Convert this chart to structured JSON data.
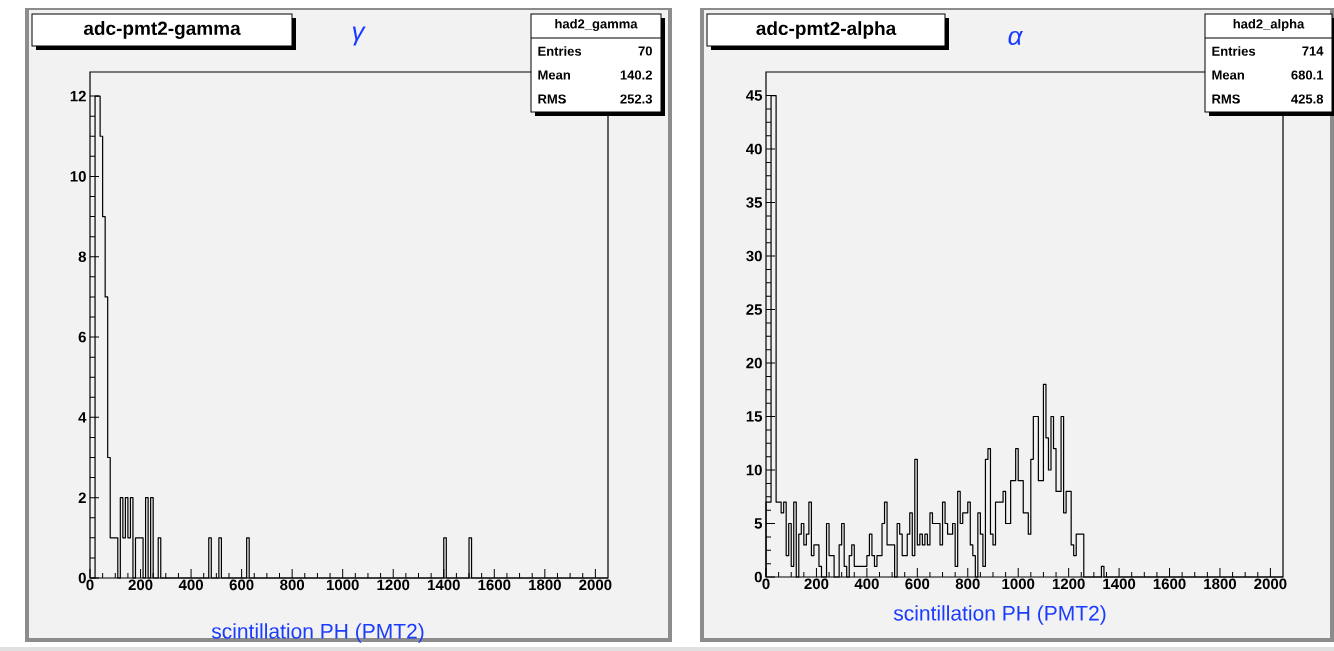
{
  "chart_data": [
    {
      "type": "histogram",
      "title": "adc-pmt2-gamma",
      "xlabel": "scintillation PH (PMT2)",
      "color": "#000000",
      "bins": [
        0,
        20,
        30,
        40,
        50,
        60,
        70,
        80,
        90,
        100,
        110,
        120,
        130,
        140,
        150,
        160,
        170,
        180,
        190,
        200,
        210,
        220,
        230,
        240,
        250,
        270,
        280,
        470,
        480,
        510,
        520,
        620,
        630,
        1400,
        1410,
        1500,
        1510,
        2050
      ],
      "values": [
        0,
        12,
        12,
        11,
        9,
        7,
        3,
        1,
        1,
        1,
        0,
        2,
        1,
        2,
        1,
        2,
        0,
        1,
        1,
        1,
        0,
        2,
        0,
        2,
        0,
        1,
        0,
        1,
        0,
        1,
        0,
        1,
        0,
        1,
        0,
        1,
        0
      ],
      "xlim": [
        0,
        2050
      ],
      "ylim": [
        0,
        12.6
      ],
      "xticks": [
        0,
        200,
        400,
        600,
        800,
        1000,
        1200,
        1400,
        1600,
        1800,
        2000
      ],
      "yticks": [
        0,
        2,
        4,
        6,
        8,
        10,
        12
      ],
      "annotations": [
        "γ",
        "had2_gamma",
        "Entries",
        "70",
        "Mean",
        "140.2",
        "RMS",
        "252.3"
      ]
    },
    {
      "type": "histogram",
      "title": "adc-pmt2-alpha",
      "xlabel": "scintillation PH (PMT2)",
      "color": "#000000",
      "bins": [
        0,
        10,
        20,
        30,
        40,
        50,
        60,
        70,
        80,
        90,
        100,
        110,
        120,
        130,
        140,
        150,
        160,
        170,
        180,
        190,
        200,
        210,
        220,
        230,
        240,
        250,
        260,
        270,
        280,
        290,
        300,
        310,
        320,
        330,
        340,
        350,
        360,
        370,
        380,
        390,
        400,
        410,
        420,
        430,
        440,
        450,
        460,
        470,
        480,
        490,
        500,
        510,
        520,
        530,
        540,
        550,
        560,
        570,
        580,
        590,
        600,
        610,
        620,
        630,
        640,
        650,
        660,
        670,
        680,
        690,
        700,
        710,
        720,
        730,
        740,
        750,
        760,
        770,
        780,
        790,
        800,
        810,
        820,
        830,
        840,
        850,
        860,
        870,
        880,
        890,
        900,
        910,
        920,
        930,
        940,
        950,
        960,
        970,
        980,
        990,
        1000,
        1010,
        1020,
        1030,
        1040,
        1050,
        1060,
        1070,
        1080,
        1090,
        1100,
        1110,
        1120,
        1130,
        1140,
        1150,
        1160,
        1170,
        1180,
        1190,
        1200,
        1210,
        1220,
        1230,
        1240,
        1250,
        1260,
        1330,
        1340,
        2050
      ],
      "values": [
        7,
        7,
        45,
        45,
        7,
        7,
        6,
        7,
        2,
        5,
        1,
        7,
        0,
        4,
        5,
        3,
        4,
        7,
        2,
        3,
        3,
        1,
        0,
        0,
        5,
        2,
        2,
        0,
        0,
        3,
        5,
        1,
        0,
        2,
        3,
        1,
        1,
        1,
        1,
        1,
        2,
        4,
        2,
        1,
        2,
        2,
        5,
        7,
        3,
        3,
        3,
        0,
        5,
        4,
        2,
        2,
        4,
        6,
        2,
        11,
        3,
        4,
        3,
        4,
        3,
        6,
        5,
        5,
        5,
        3,
        7,
        5,
        4,
        4,
        5,
        1,
        8,
        5,
        6,
        6,
        7,
        3,
        2,
        0,
        6,
        4,
        1,
        11,
        12,
        4,
        3,
        7,
        7,
        7,
        8,
        5,
        5,
        9,
        9,
        12,
        9,
        9,
        6,
        6,
        4,
        11,
        15,
        15,
        9,
        9,
        18,
        13,
        10,
        15,
        12,
        8,
        8,
        15,
        6,
        8,
        8,
        3,
        2,
        4,
        4,
        4,
        0,
        1,
        0
      ],
      "xlim": [
        0,
        2050
      ],
      "ylim": [
        0,
        47.2
      ],
      "xticks": [
        0,
        200,
        400,
        600,
        800,
        1000,
        1200,
        1400,
        1600,
        1800,
        2000
      ],
      "yticks": [
        0,
        5,
        10,
        15,
        20,
        25,
        30,
        35,
        40,
        45
      ],
      "annotations": [
        "α",
        "had2_alpha",
        "Entries",
        "714",
        "Mean",
        "680.1",
        "RMS",
        "425.8"
      ]
    }
  ]
}
